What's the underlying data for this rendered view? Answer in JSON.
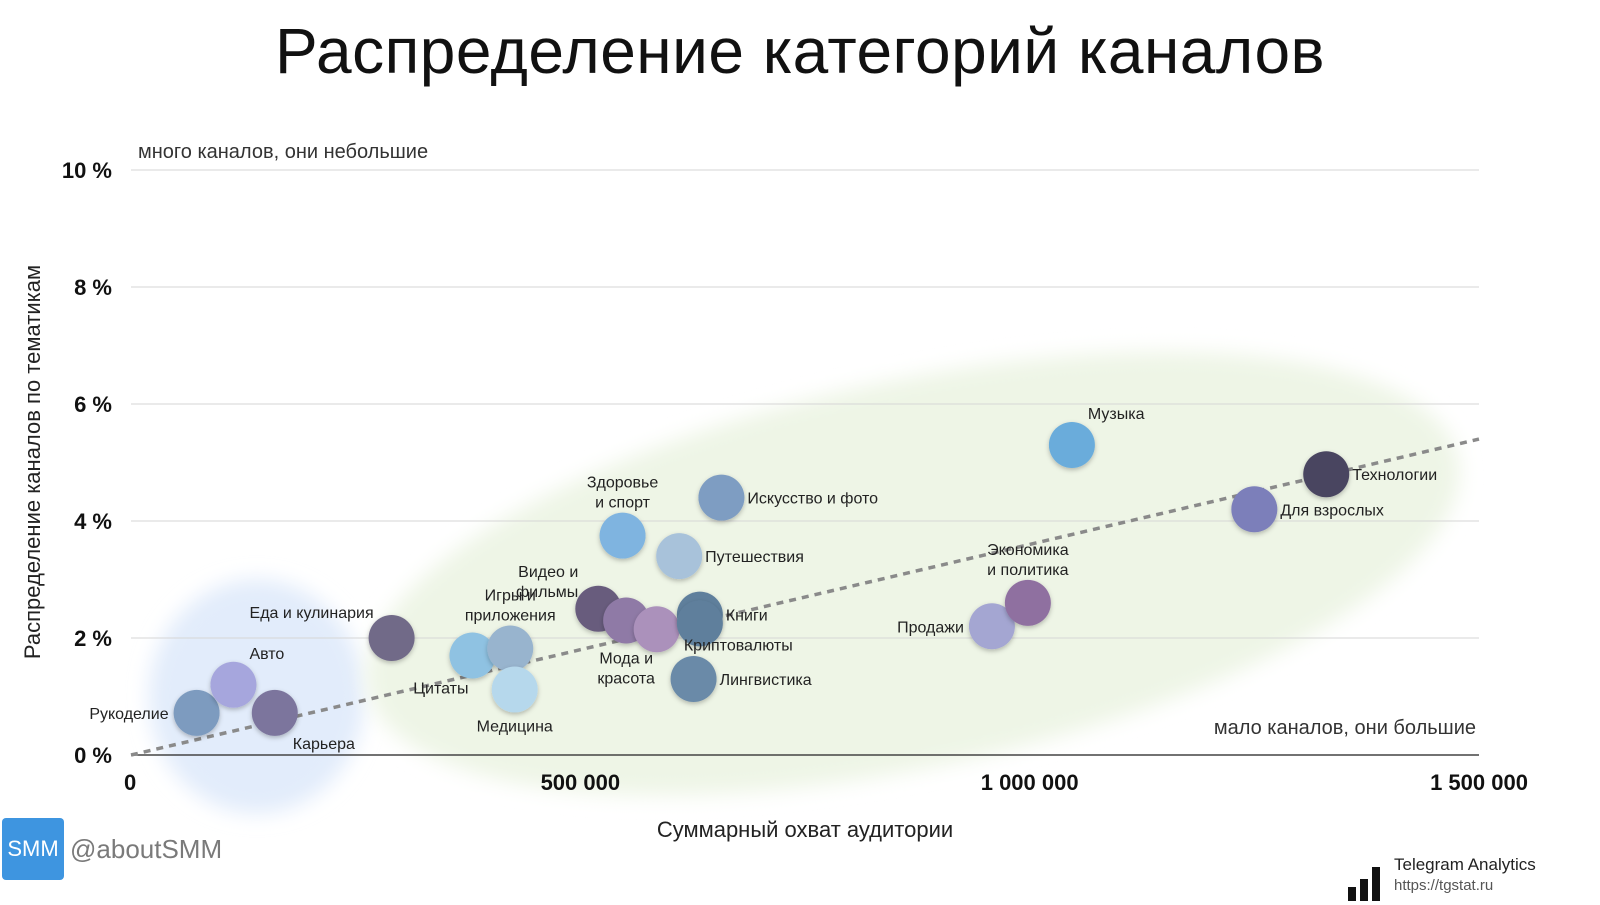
{
  "chart_data": {
    "type": "scatter",
    "title": "Распределение категорий каналов",
    "xlabel": "Суммарный охват аудитории",
    "ylabel": "Распределение каналов по тематикам",
    "xlim": [
      0,
      1500000
    ],
    "ylim": [
      0,
      10
    ],
    "x_ticks": [
      {
        "value": 0,
        "label": "0"
      },
      {
        "value": 500000,
        "label": "500 000"
      },
      {
        "value": 1000000,
        "label": "1 000 000"
      },
      {
        "value": 1500000,
        "label": "1 500 000"
      }
    ],
    "y_ticks": [
      {
        "value": 0,
        "label": "0 %"
      },
      {
        "value": 2,
        "label": "2 %"
      },
      {
        "value": 4,
        "label": "4 %"
      },
      {
        "value": 6,
        "label": "6 %"
      },
      {
        "value": 8,
        "label": "8 %"
      },
      {
        "value": 10,
        "label": "10 %"
      }
    ],
    "grid": true,
    "trendline": {
      "from": [
        0,
        0
      ],
      "to": [
        1500000,
        5.4
      ]
    },
    "regions": [
      {
        "color": "#e2ecfb",
        "cx": 140000,
        "cy": 1.0,
        "rx": 120000,
        "ry": 2.0
      },
      {
        "color": "#eef5e6",
        "cx": 870000,
        "cy": 3.1,
        "rx": 620000,
        "ry": 3.3
      }
    ],
    "annotations": {
      "top_left": "много каналов, они небольшие",
      "bottom_right": "мало каналов, они большие"
    },
    "points": [
      {
        "label": "Рукоделие",
        "x": 73000,
        "y": 0.72,
        "color": "#7d9bbf"
      },
      {
        "label": "Авто",
        "x": 114000,
        "y": 1.2,
        "color": "#a6a6dd"
      },
      {
        "label": "Карьера",
        "x": 160000,
        "y": 0.72,
        "color": "#7c759d"
      },
      {
        "label": "Еда и кулинария",
        "x": 290000,
        "y": 2.0,
        "color": "#716b88"
      },
      {
        "label": "Цитаты",
        "x": 380000,
        "y": 1.7,
        "color": "#8fc2e2"
      },
      {
        "label": "Игры и приложения",
        "x": 422000,
        "y": 1.82,
        "color": "#98b4ce"
      },
      {
        "label": "Медицина",
        "x": 427000,
        "y": 1.12,
        "color": "#b6d8ec"
      },
      {
        "label": "Видео и фильмы",
        "x": 520000,
        "y": 2.5,
        "color": "#675c7d"
      },
      {
        "label": "Мода и красота",
        "x": 551000,
        "y": 2.3,
        "color": "#8f7aa6"
      },
      {
        "label": "Мода и красота",
        "x": 585000,
        "y": 2.15,
        "color": "#ab91bb"
      },
      {
        "label": "Здоровье и спорт",
        "x": 547000,
        "y": 3.75,
        "color": "#7fb4e0"
      },
      {
        "label": "Путешествия",
        "x": 610000,
        "y": 3.4,
        "color": "#a8c2da"
      },
      {
        "label": "Искусство и фото",
        "x": 657000,
        "y": 4.4,
        "color": "#7e9dc2"
      },
      {
        "label": "Книги",
        "x": 633000,
        "y": 2.4,
        "color": "#5e7f9c"
      },
      {
        "label": "Криптовалюты",
        "x": 633000,
        "y": 2.25,
        "color": "#5e7f9c"
      },
      {
        "label": "Лингвистика",
        "x": 626000,
        "y": 1.3,
        "color": "#6b8aa8"
      },
      {
        "label": "Продажи",
        "x": 958000,
        "y": 2.2,
        "color": "#a4a6d2"
      },
      {
        "label": "Экономика и политика",
        "x": 998000,
        "y": 2.6,
        "color": "#8f6fa0"
      },
      {
        "label": "Музыка",
        "x": 1047000,
        "y": 5.3,
        "color": "#6aacdb"
      },
      {
        "label": "Для взрослых",
        "x": 1250000,
        "y": 4.2,
        "color": "#7c7fba"
      },
      {
        "label": "Технологии",
        "x": 1330000,
        "y": 4.8,
        "color": "#4a4560"
      }
    ],
    "labels": [
      {
        "text": "Рукоделие",
        "x": 73000,
        "y": 0.72,
        "pos": "left"
      },
      {
        "text": "Авто",
        "x": 114000,
        "y": 1.2,
        "pos": "above-right"
      },
      {
        "text": "Карьера",
        "x": 160000,
        "y": 0.72,
        "pos": "below-right"
      },
      {
        "text": "Еда и кулинария",
        "x": 290000,
        "y": 2.0,
        "pos": "above-left"
      },
      {
        "text": "Цитаты",
        "x": 380000,
        "y": 1.7,
        "pos": "below-left"
      },
      {
        "text": "Игры и",
        "x": 422000,
        "y": 1.82,
        "pos": "above-1"
      },
      {
        "text": "приложения",
        "x": 422000,
        "y": 1.82,
        "pos": "above-2"
      },
      {
        "text": "Медицина",
        "x": 427000,
        "y": 1.12,
        "pos": "below"
      },
      {
        "text": "Видео и",
        "x": 520000,
        "y": 2.5,
        "pos": "above-left-1"
      },
      {
        "text": "фильмы",
        "x": 520000,
        "y": 2.5,
        "pos": "above-left-2"
      },
      {
        "text": "Мода и",
        "x": 551000,
        "y": 2.3,
        "pos": "below-1"
      },
      {
        "text": "красота",
        "x": 551000,
        "y": 2.3,
        "pos": "below-2"
      },
      {
        "text": "Здоровье",
        "x": 547000,
        "y": 3.75,
        "pos": "above-1"
      },
      {
        "text": "и спорт",
        "x": 547000,
        "y": 3.75,
        "pos": "above-2"
      },
      {
        "text": "Путешествия",
        "x": 610000,
        "y": 3.4,
        "pos": "right"
      },
      {
        "text": "Искусство и фото",
        "x": 657000,
        "y": 4.4,
        "pos": "right"
      },
      {
        "text": "Книги",
        "x": 633000,
        "y": 2.4,
        "pos": "right"
      },
      {
        "text": "Криптовалюты",
        "x": 633000,
        "y": 2.25,
        "pos": "below-right-tight"
      },
      {
        "text": "Лингвистика",
        "x": 626000,
        "y": 1.3,
        "pos": "right"
      },
      {
        "text": "Продажи",
        "x": 958000,
        "y": 2.2,
        "pos": "left"
      },
      {
        "text": "Экономика",
        "x": 998000,
        "y": 2.6,
        "pos": "above-1"
      },
      {
        "text": "и политика",
        "x": 998000,
        "y": 2.6,
        "pos": "above-2"
      },
      {
        "text": "Музыка",
        "x": 1047000,
        "y": 5.3,
        "pos": "above-right"
      },
      {
        "text": "Для взрослых",
        "x": 1250000,
        "y": 4.2,
        "pos": "right"
      },
      {
        "text": "Технологии",
        "x": 1330000,
        "y": 4.8,
        "pos": "right"
      }
    ]
  },
  "brand": {
    "badge": "SMM",
    "handle": "@aboutSMM",
    "badge_color": "#3e95e0"
  },
  "source": {
    "name": "Telegram Analytics",
    "url": "https://tgstat.ru"
  }
}
